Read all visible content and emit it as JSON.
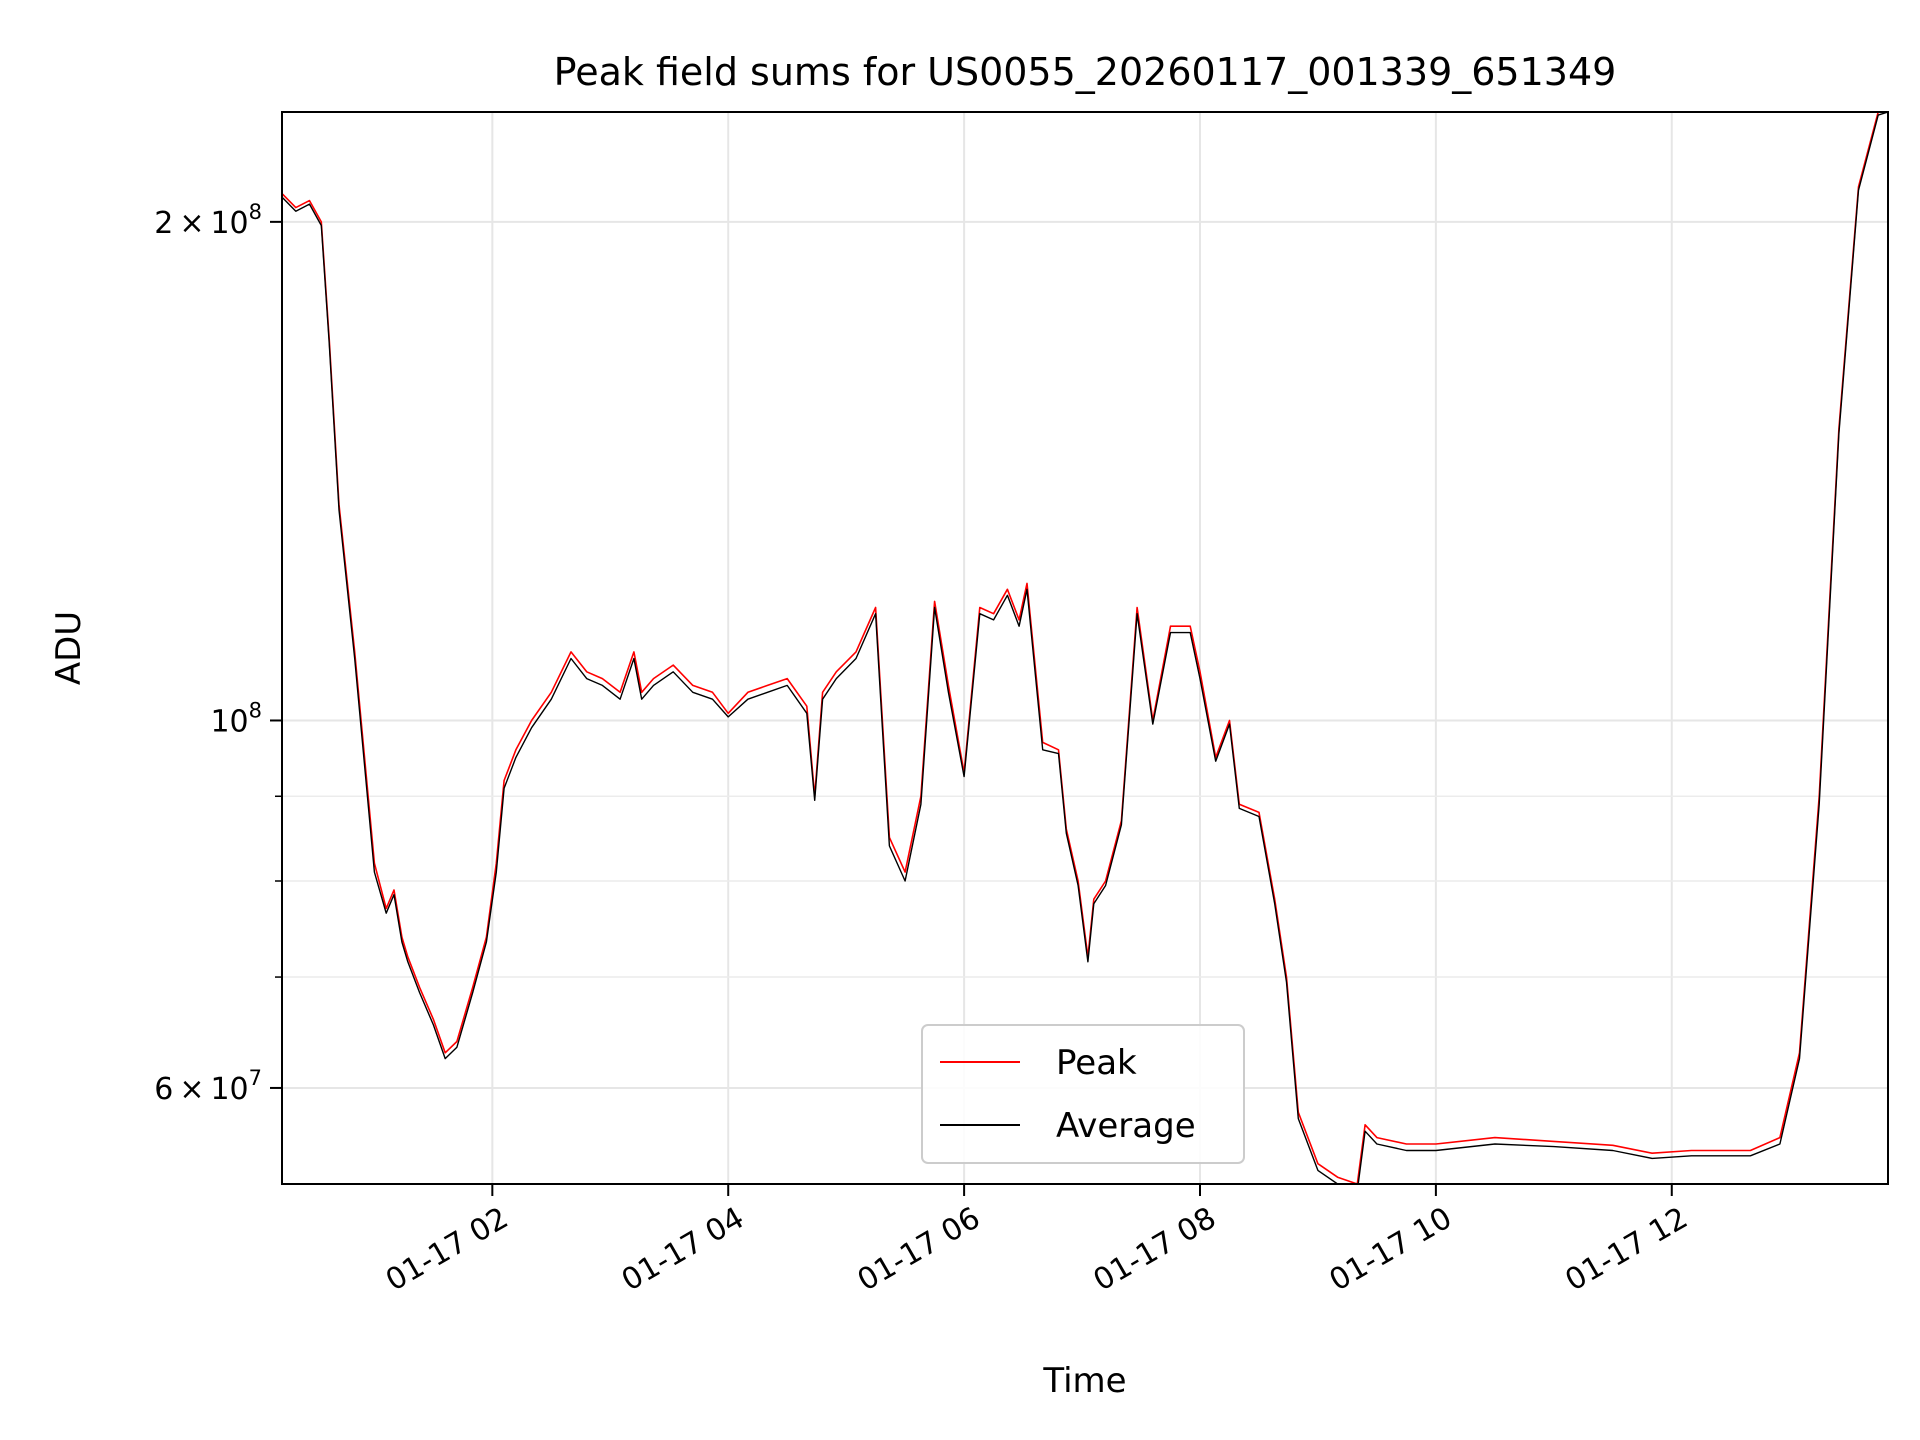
{
  "chart_data": {
    "type": "line",
    "title": "Peak field sums for US0055_20260117_001339_651349",
    "xlabel": "Time",
    "ylabel": "ADU",
    "y_scale": "log",
    "ylim": [
      52500000,
      233000000
    ],
    "xlim": [
      "2026-01-17 00:13",
      "2026-01-17 13:50"
    ],
    "grid": true,
    "legend_placement": "lower-center",
    "x_ticks": [
      {
        "value": "2026-01-17 02:00",
        "label": "01-17 02"
      },
      {
        "value": "2026-01-17 04:00",
        "label": "01-17 04"
      },
      {
        "value": "2026-01-17 06:00",
        "label": "01-17 06"
      },
      {
        "value": "2026-01-17 08:00",
        "label": "01-17 08"
      },
      {
        "value": "2026-01-17 10:00",
        "label": "01-17 10"
      },
      {
        "value": "2026-01-17 12:00",
        "label": "01-17 12"
      }
    ],
    "y_major_ticks": [
      {
        "value": 60000000,
        "mantissa": "6",
        "exponent": "7"
      },
      {
        "value": 100000000,
        "mantissa": "",
        "exponent": "8"
      },
      {
        "value": 200000000,
        "mantissa": "2",
        "exponent": "8"
      }
    ],
    "y_minor_ticks": [
      70000000,
      80000000,
      90000000
    ],
    "series": [
      {
        "name": "Peak",
        "color": "#ff0000",
        "x": [
          "2026-01-17 00:13",
          "2026-01-17 00:20",
          "2026-01-17 00:27",
          "2026-01-17 00:33",
          "2026-01-17 00:37",
          "2026-01-17 00:42",
          "2026-01-17 00:50",
          "2026-01-17 01:00",
          "2026-01-17 01:06",
          "2026-01-17 01:10",
          "2026-01-17 01:14",
          "2026-01-17 01:17",
          "2026-01-17 01:23",
          "2026-01-17 01:30",
          "2026-01-17 01:36",
          "2026-01-17 01:42",
          "2026-01-17 01:50",
          "2026-01-17 01:57",
          "2026-01-17 02:02",
          "2026-01-17 02:06",
          "2026-01-17 02:12",
          "2026-01-17 02:20",
          "2026-01-17 02:30",
          "2026-01-17 02:40",
          "2026-01-17 02:48",
          "2026-01-17 02:56",
          "2026-01-17 03:05",
          "2026-01-17 03:12",
          "2026-01-17 03:16",
          "2026-01-17 03:22",
          "2026-01-17 03:32",
          "2026-01-17 03:42",
          "2026-01-17 03:52",
          "2026-01-17 04:00",
          "2026-01-17 04:10",
          "2026-01-17 04:20",
          "2026-01-17 04:30",
          "2026-01-17 04:40",
          "2026-01-17 04:44",
          "2026-01-17 04:48",
          "2026-01-17 04:55",
          "2026-01-17 05:05",
          "2026-01-17 05:15",
          "2026-01-17 05:22",
          "2026-01-17 05:30",
          "2026-01-17 05:38",
          "2026-01-17 05:45",
          "2026-01-17 05:52",
          "2026-01-17 06:00",
          "2026-01-17 06:08",
          "2026-01-17 06:15",
          "2026-01-17 06:22",
          "2026-01-17 06:28",
          "2026-01-17 06:32",
          "2026-01-17 06:40",
          "2026-01-17 06:48",
          "2026-01-17 06:52",
          "2026-01-17 06:58",
          "2026-01-17 07:03",
          "2026-01-17 07:06",
          "2026-01-17 07:12",
          "2026-01-17 07:20",
          "2026-01-17 07:28",
          "2026-01-17 07:36",
          "2026-01-17 07:45",
          "2026-01-17 07:55",
          "2026-01-17 08:00",
          "2026-01-17 08:08",
          "2026-01-17 08:15",
          "2026-01-17 08:20",
          "2026-01-17 08:30",
          "2026-01-17 08:38",
          "2026-01-17 08:44",
          "2026-01-17 08:50",
          "2026-01-17 09:00",
          "2026-01-17 09:10",
          "2026-01-17 09:20",
          "2026-01-17 09:24",
          "2026-01-17 09:30",
          "2026-01-17 09:45",
          "2026-01-17 10:00",
          "2026-01-17 10:30",
          "2026-01-17 11:00",
          "2026-01-17 11:30",
          "2026-01-17 11:50",
          "2026-01-17 12:10",
          "2026-01-17 12:40",
          "2026-01-17 12:55",
          "2026-01-17 13:05",
          "2026-01-17 13:15",
          "2026-01-17 13:25",
          "2026-01-17 13:35",
          "2026-01-17 13:45",
          "2026-01-17 13:50"
        ],
        "y": [
          208000000,
          204000000,
          206000000,
          200000000,
          170000000,
          135000000,
          110000000,
          82000000,
          77000000,
          79000000,
          74000000,
          72000000,
          69000000,
          66000000,
          63000000,
          64000000,
          69000000,
          74000000,
          82000000,
          92000000,
          96000000,
          100000000,
          104000000,
          110000000,
          107000000,
          106000000,
          104000000,
          110000000,
          104000000,
          106000000,
          108000000,
          105000000,
          104000000,
          101000000,
          104000000,
          105000000,
          106000000,
          102000000,
          90000000,
          104000000,
          107000000,
          110000000,
          117000000,
          85000000,
          81000000,
          90000000,
          118000000,
          105000000,
          93000000,
          117000000,
          116000000,
          120000000,
          115000000,
          121000000,
          97000000,
          96000000,
          86000000,
          80000000,
          72000000,
          78000000,
          80000000,
          87000000,
          117000000,
          100000000,
          114000000,
          114000000,
          107000000,
          95000000,
          100000000,
          89000000,
          88000000,
          78000000,
          70000000,
          58000000,
          54000000,
          53000000,
          52500000,
          57000000,
          56000000,
          55500000,
          55500000,
          56000000,
          55700000,
          55400000,
          54800000,
          55000000,
          55000000,
          56000000,
          63000000,
          90000000,
          150000000,
          210000000,
          233000000,
          233000000
        ]
      },
      {
        "name": "Average",
        "color": "#000000",
        "x": [
          "2026-01-17 00:13",
          "2026-01-17 00:20",
          "2026-01-17 00:27",
          "2026-01-17 00:33",
          "2026-01-17 00:37",
          "2026-01-17 00:42",
          "2026-01-17 00:50",
          "2026-01-17 01:00",
          "2026-01-17 01:06",
          "2026-01-17 01:10",
          "2026-01-17 01:14",
          "2026-01-17 01:17",
          "2026-01-17 01:23",
          "2026-01-17 01:30",
          "2026-01-17 01:36",
          "2026-01-17 01:42",
          "2026-01-17 01:50",
          "2026-01-17 01:57",
          "2026-01-17 02:02",
          "2026-01-17 02:06",
          "2026-01-17 02:12",
          "2026-01-17 02:20",
          "2026-01-17 02:30",
          "2026-01-17 02:40",
          "2026-01-17 02:48",
          "2026-01-17 02:56",
          "2026-01-17 03:05",
          "2026-01-17 03:12",
          "2026-01-17 03:16",
          "2026-01-17 03:22",
          "2026-01-17 03:32",
          "2026-01-17 03:42",
          "2026-01-17 03:52",
          "2026-01-17 04:00",
          "2026-01-17 04:10",
          "2026-01-17 04:20",
          "2026-01-17 04:30",
          "2026-01-17 04:40",
          "2026-01-17 04:44",
          "2026-01-17 04:48",
          "2026-01-17 04:55",
          "2026-01-17 05:05",
          "2026-01-17 05:15",
          "2026-01-17 05:22",
          "2026-01-17 05:30",
          "2026-01-17 05:38",
          "2026-01-17 05:45",
          "2026-01-17 05:52",
          "2026-01-17 06:00",
          "2026-01-17 06:08",
          "2026-01-17 06:15",
          "2026-01-17 06:22",
          "2026-01-17 06:28",
          "2026-01-17 06:32",
          "2026-01-17 06:40",
          "2026-01-17 06:48",
          "2026-01-17 06:52",
          "2026-01-17 06:58",
          "2026-01-17 07:03",
          "2026-01-17 07:06",
          "2026-01-17 07:12",
          "2026-01-17 07:20",
          "2026-01-17 07:28",
          "2026-01-17 07:36",
          "2026-01-17 07:45",
          "2026-01-17 07:55",
          "2026-01-17 08:00",
          "2026-01-17 08:08",
          "2026-01-17 08:15",
          "2026-01-17 08:20",
          "2026-01-17 08:30",
          "2026-01-17 08:38",
          "2026-01-17 08:44",
          "2026-01-17 08:50",
          "2026-01-17 09:00",
          "2026-01-17 09:10",
          "2026-01-17 09:20",
          "2026-01-17 09:24",
          "2026-01-17 09:30",
          "2026-01-17 09:45",
          "2026-01-17 10:00",
          "2026-01-17 10:30",
          "2026-01-17 11:00",
          "2026-01-17 11:30",
          "2026-01-17 11:50",
          "2026-01-17 12:10",
          "2026-01-17 12:40",
          "2026-01-17 12:55",
          "2026-01-17 13:05",
          "2026-01-17 13:15",
          "2026-01-17 13:25",
          "2026-01-17 13:35",
          "2026-01-17 13:45",
          "2026-01-17 13:50"
        ],
        "y": [
          207000000,
          203000000,
          205000000,
          199000000,
          169000000,
          134000000,
          109000000,
          81000000,
          76500000,
          78500000,
          73500000,
          71500000,
          68500000,
          65500000,
          62500000,
          63500000,
          68500000,
          73500000,
          81000000,
          91000000,
          95000000,
          99000000,
          103000000,
          109000000,
          106000000,
          105000000,
          103000000,
          109000000,
          103000000,
          105000000,
          107000000,
          104000000,
          103000000,
          100500000,
          103000000,
          104000000,
          105000000,
          101000000,
          89500000,
          103000000,
          106000000,
          109000000,
          116000000,
          84000000,
          80000000,
          89000000,
          117000000,
          104000000,
          92500000,
          116000000,
          115000000,
          119000000,
          114000000,
          120000000,
          96000000,
          95500000,
          85500000,
          79500000,
          71500000,
          77500000,
          79500000,
          86500000,
          116000000,
          99500000,
          113000000,
          113000000,
          106000000,
          94500000,
          99500000,
          88500000,
          87500000,
          77500000,
          69500000,
          57500000,
          53500000,
          52500000,
          52000000,
          56500000,
          55500000,
          55000000,
          55000000,
          55500000,
          55300000,
          55000000,
          54400000,
          54600000,
          54600000,
          55500000,
          62500000,
          89000000,
          149000000,
          209000000,
          232000000,
          233000000
        ]
      }
    ]
  }
}
